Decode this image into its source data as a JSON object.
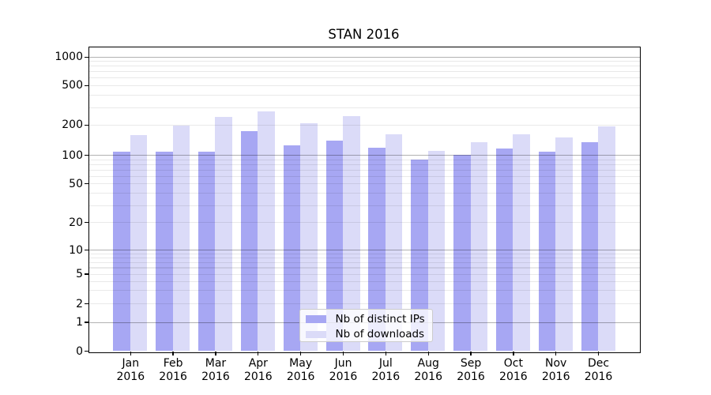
{
  "chart_data": {
    "type": "bar",
    "title": "STAN 2016",
    "categories": [
      "Jan",
      "Feb",
      "Mar",
      "Apr",
      "May",
      "Jun",
      "Jul",
      "Aug",
      "Sep",
      "Oct",
      "Nov",
      "Dec"
    ],
    "x_tick_second_line": "2016",
    "series": [
      {
        "name": "Nb of distinct IPs",
        "color": "#a7a7f3",
        "values": [
          108,
          107,
          107,
          172,
          124,
          140,
          118,
          89,
          100,
          117,
          107,
          134
        ]
      },
      {
        "name": "Nb of downloads",
        "color": "#dbdbf8",
        "values": [
          158,
          197,
          238,
          272,
          207,
          243,
          160,
          110,
          134,
          161,
          149,
          193
        ]
      }
    ],
    "y_axis": {
      "scale": "symlog",
      "tick_labels": [
        "0",
        "1",
        "2",
        "5",
        "10",
        "20",
        "50",
        "100",
        "200",
        "500",
        "1000"
      ],
      "tick_values": [
        0,
        1,
        2,
        5,
        10,
        20,
        50,
        100,
        200,
        500,
        1000
      ],
      "emphasized_gridlines": [
        1,
        10,
        100,
        1000
      ],
      "minor_gridlines": [
        3,
        4,
        6,
        7,
        8,
        9,
        30,
        40,
        60,
        70,
        80,
        90,
        300,
        400,
        600,
        700,
        800,
        900
      ],
      "ylim": [
        0,
        1250
      ]
    },
    "xlabel": "",
    "ylabel": "",
    "grid": true,
    "legend_position": "lower center"
  },
  "colors": {
    "bar_distinct_ips": "#a7a7f3",
    "bar_downloads": "#dbdbf8",
    "grid_major": "#b3b3b3",
    "grid_minor": "#e9e9e9",
    "axis_frame": "#000000",
    "legend_border": "#cccccc"
  }
}
